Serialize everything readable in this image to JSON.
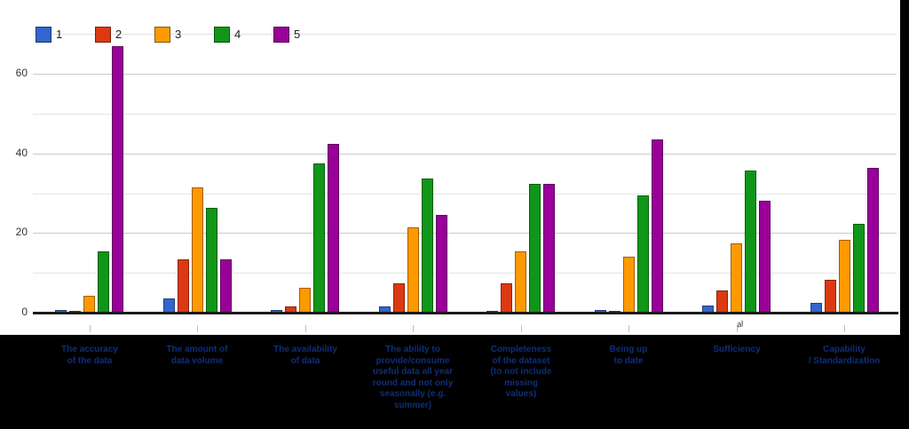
{
  "chart_data": {
    "type": "bar",
    "title": "",
    "xlabel": "",
    "ylabel": "",
    "ylim": [
      0,
      70
    ],
    "yticks": [
      0,
      20,
      40,
      60
    ],
    "gridline_values_minor": [
      10,
      30,
      50,
      70
    ],
    "gridline_values_major": [
      20,
      40,
      60
    ],
    "legend_position": "top",
    "categories": [
      "The accuracy\nof the data",
      "The amount of\ndata volume",
      "The availability\nof data",
      "The ability to\nprovide/consume\nuseful data all year\nround and not only\nseasonally (e.g.\nsummer)",
      "Completeness\nof the dataset\n(to not include\nmissing\nvalues)",
      "Being up\nto date",
      "Sufficiency",
      "Capability\n/ Standardization"
    ],
    "series": [
      {
        "name": "1",
        "color": "#3366CC",
        "values": [
          0.6,
          3.5,
          0.6,
          1.6,
          0.5,
          0.6,
          1.8,
          2.4
        ]
      },
      {
        "name": "2",
        "color": "#DC3912",
        "values": [
          0.5,
          13.3,
          1.5,
          7.3,
          7.4,
          0.5,
          5.6,
          8.3
        ]
      },
      {
        "name": "3",
        "color": "#FF9900",
        "values": [
          4.3,
          31.5,
          6.3,
          21.5,
          15.4,
          14.1,
          17.5,
          18.4
        ]
      },
      {
        "name": "4",
        "color": "#109618",
        "values": [
          15.5,
          26.3,
          37.5,
          33.6,
          32.4,
          29.5,
          35.7,
          22.4
        ]
      },
      {
        "name": "5",
        "color": "#990099",
        "values": [
          67,
          13.3,
          42.3,
          24.5,
          32.4,
          43.5,
          28.2,
          36.4
        ]
      }
    ]
  },
  "colors": {
    "panel_background": "#ffffff",
    "outer_background": "#000000",
    "grid_major": "#cbcbcb",
    "grid_minor": "#e4e4e4",
    "axis_baseline": "#1b1b1b",
    "axis_text": "#333333",
    "category_label_text": "#0f2e7a"
  },
  "artifact": {
    "text": "al"
  }
}
